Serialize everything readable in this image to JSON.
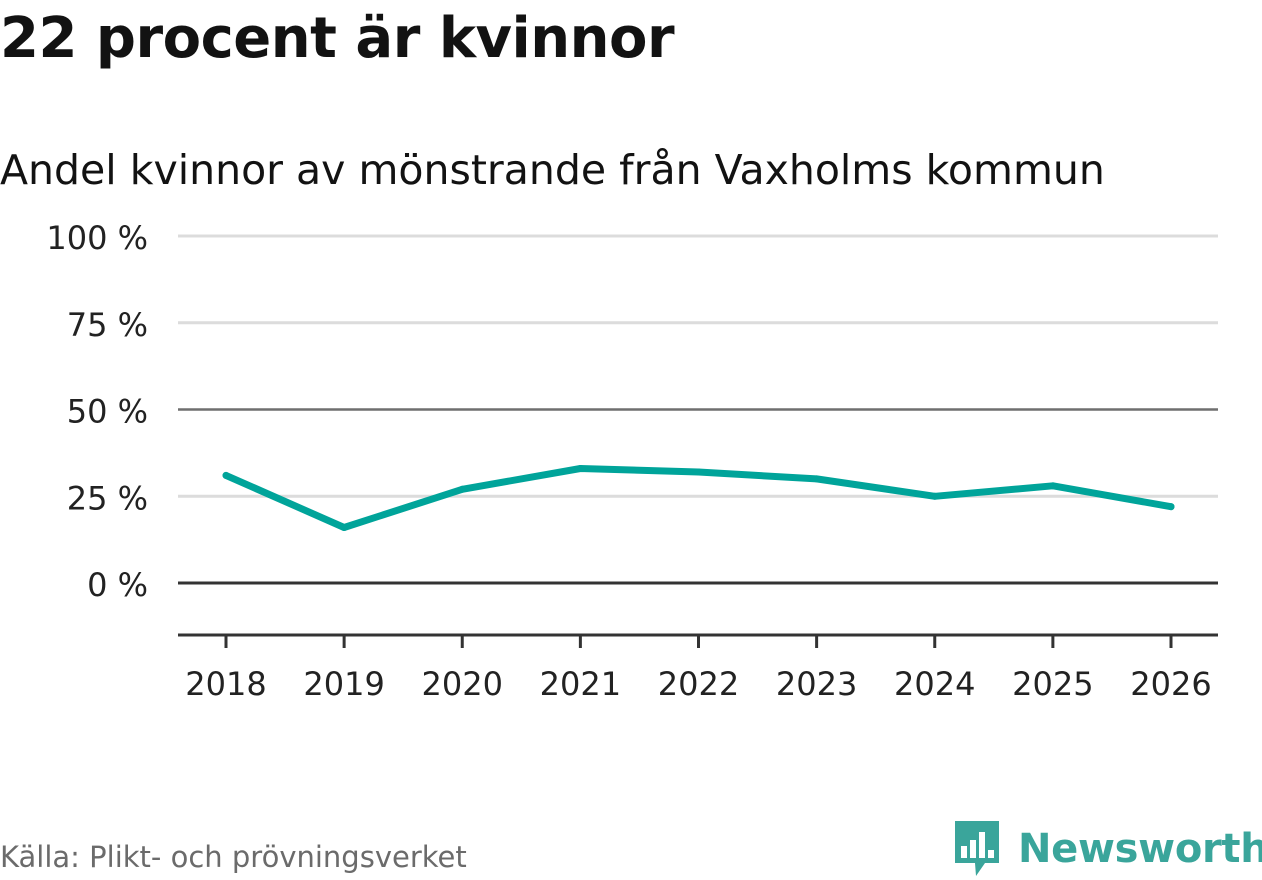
{
  "title": "22 procent är kvinnor",
  "subtitle": "Andel kvinnor av mönstrande från Vaxholms kommun",
  "source": "Källa: Plikt- och prövningsverket",
  "brand": {
    "name": "Newsworthy",
    "icon": "newsworthy-logo-icon",
    "color": "#3aa59b"
  },
  "chart_data": {
    "type": "line",
    "title": "22 procent är kvinnor",
    "subtitle": "Andel kvinnor av mönstrande från Vaxholms kommun",
    "xlabel": "",
    "ylabel": "",
    "x": [
      "2018",
      "2019",
      "2020",
      "2021",
      "2022",
      "2023",
      "2024",
      "2025",
      "2026"
    ],
    "series": [
      {
        "name": "Andel kvinnor",
        "values": [
          31,
          16,
          27,
          33,
          32,
          30,
          25,
          28,
          22
        ],
        "color": "#00a49a"
      }
    ],
    "ylim": [
      -15,
      100
    ],
    "yticks": [
      100,
      75,
      50,
      25,
      0
    ],
    "ytick_labels": [
      "100 %",
      "75 %",
      "50 %",
      "25 %",
      "0 %"
    ],
    "reference_lines": [
      50,
      0
    ],
    "grid": true,
    "legend": "none"
  }
}
